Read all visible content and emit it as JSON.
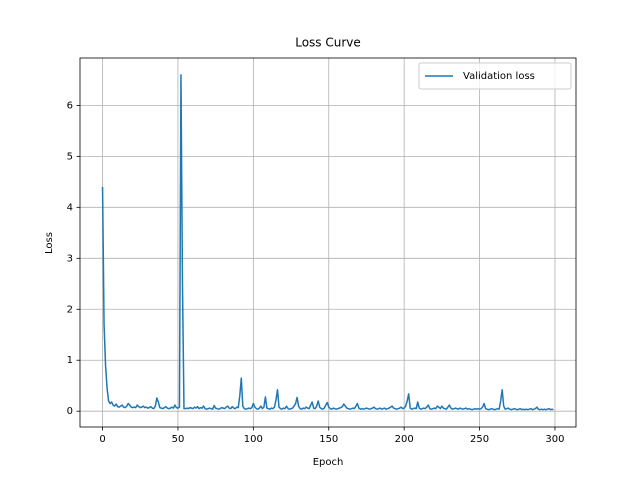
{
  "chart_data": {
    "type": "line",
    "title": "Loss Curve",
    "x_label": "Epoch",
    "y_label": "Loss",
    "x": [
      0,
      1,
      2,
      3,
      4,
      5,
      6,
      7,
      8,
      9,
      10,
      11,
      12,
      13,
      14,
      15,
      16,
      17,
      18,
      19,
      20,
      21,
      22,
      23,
      24,
      25,
      26,
      27,
      28,
      29,
      30,
      31,
      32,
      33,
      34,
      35,
      36,
      37,
      38,
      39,
      40,
      41,
      42,
      43,
      44,
      45,
      46,
      47,
      48,
      49,
      50,
      51,
      52,
      53,
      54,
      55,
      56,
      57,
      58,
      59,
      60,
      61,
      62,
      63,
      64,
      65,
      66,
      67,
      68,
      69,
      70,
      71,
      72,
      73,
      74,
      75,
      76,
      77,
      78,
      79,
      80,
      81,
      82,
      83,
      84,
      85,
      86,
      87,
      88,
      89,
      90,
      91,
      92,
      93,
      94,
      95,
      96,
      97,
      98,
      99,
      100,
      101,
      102,
      103,
      104,
      105,
      106,
      107,
      108,
      109,
      110,
      111,
      112,
      113,
      114,
      115,
      116,
      117,
      118,
      119,
      120,
      121,
      122,
      123,
      124,
      125,
      126,
      127,
      128,
      129,
      130,
      131,
      132,
      133,
      134,
      135,
      136,
      137,
      138,
      139,
      140,
      141,
      142,
      143,
      144,
      145,
      146,
      147,
      148,
      149,
      150,
      151,
      152,
      153,
      154,
      155,
      156,
      157,
      158,
      159,
      160,
      161,
      162,
      163,
      164,
      165,
      166,
      167,
      168,
      169,
      170,
      171,
      172,
      173,
      174,
      175,
      176,
      177,
      178,
      179,
      180,
      181,
      182,
      183,
      184,
      185,
      186,
      187,
      188,
      189,
      190,
      191,
      192,
      193,
      194,
      195,
      196,
      197,
      198,
      199,
      200,
      201,
      202,
      203,
      204,
      205,
      206,
      207,
      208,
      209,
      210,
      211,
      212,
      213,
      214,
      215,
      216,
      217,
      218,
      219,
      220,
      221,
      222,
      223,
      224,
      225,
      226,
      227,
      228,
      229,
      230,
      231,
      232,
      233,
      234,
      235,
      236,
      237,
      238,
      239,
      240,
      241,
      242,
      243,
      244,
      245,
      246,
      247,
      248,
      249,
      250,
      251,
      252,
      253,
      254,
      255,
      256,
      257,
      258,
      259,
      260,
      261,
      262,
      263,
      264,
      265,
      266,
      267,
      268,
      269,
      270,
      271,
      272,
      273,
      274,
      275,
      276,
      277,
      278,
      279,
      280,
      281,
      282,
      283,
      284,
      285,
      286,
      287,
      288,
      289,
      290,
      291,
      292,
      293,
      294,
      295,
      296,
      297,
      298,
      299
    ],
    "series": [
      {
        "name": "Validation loss",
        "color": "#1f77b4",
        "values": [
          4.4,
          1.7,
          0.9,
          0.45,
          0.2,
          0.15,
          0.18,
          0.12,
          0.1,
          0.14,
          0.09,
          0.08,
          0.1,
          0.12,
          0.08,
          0.07,
          0.1,
          0.15,
          0.12,
          0.08,
          0.07,
          0.08,
          0.07,
          0.12,
          0.09,
          0.07,
          0.08,
          0.1,
          0.07,
          0.08,
          0.06,
          0.07,
          0.09,
          0.06,
          0.05,
          0.1,
          0.26,
          0.18,
          0.07,
          0.06,
          0.05,
          0.07,
          0.09,
          0.06,
          0.05,
          0.06,
          0.08,
          0.06,
          0.12,
          0.07,
          0.06,
          0.08,
          6.6,
          2.5,
          0.05,
          0.05,
          0.06,
          0.05,
          0.07,
          0.06,
          0.05,
          0.08,
          0.06,
          0.09,
          0.05,
          0.07,
          0.06,
          0.1,
          0.05,
          0.04,
          0.05,
          0.06,
          0.05,
          0.04,
          0.11,
          0.06,
          0.05,
          0.04,
          0.05,
          0.07,
          0.06,
          0.05,
          0.08,
          0.1,
          0.06,
          0.05,
          0.09,
          0.06,
          0.05,
          0.08,
          0.07,
          0.3,
          0.65,
          0.1,
          0.05,
          0.04,
          0.05,
          0.06,
          0.05,
          0.07,
          0.15,
          0.08,
          0.05,
          0.04,
          0.06,
          0.1,
          0.05,
          0.08,
          0.28,
          0.06,
          0.05,
          0.04,
          0.06,
          0.05,
          0.08,
          0.22,
          0.42,
          0.08,
          0.05,
          0.04,
          0.06,
          0.05,
          0.1,
          0.05,
          0.04,
          0.05,
          0.06,
          0.1,
          0.15,
          0.27,
          0.1,
          0.05,
          0.04,
          0.06,
          0.05,
          0.08,
          0.06,
          0.05,
          0.12,
          0.18,
          0.06,
          0.05,
          0.1,
          0.2,
          0.08,
          0.05,
          0.04,
          0.06,
          0.12,
          0.17,
          0.08,
          0.05,
          0.04,
          0.06,
          0.05,
          0.04,
          0.05,
          0.06,
          0.07,
          0.09,
          0.14,
          0.1,
          0.06,
          0.05,
          0.04,
          0.05,
          0.06,
          0.05,
          0.1,
          0.15,
          0.06,
          0.04,
          0.05,
          0.04,
          0.05,
          0.06,
          0.05,
          0.04,
          0.05,
          0.06,
          0.08,
          0.05,
          0.04,
          0.05,
          0.06,
          0.04,
          0.05,
          0.06,
          0.04,
          0.05,
          0.06,
          0.08,
          0.1,
          0.06,
          0.05,
          0.04,
          0.05,
          0.06,
          0.08,
          0.05,
          0.06,
          0.1,
          0.2,
          0.34,
          0.06,
          0.04,
          0.05,
          0.06,
          0.05,
          0.18,
          0.06,
          0.04,
          0.05,
          0.06,
          0.05,
          0.08,
          0.12,
          0.05,
          0.04,
          0.05,
          0.06,
          0.05,
          0.1,
          0.08,
          0.05,
          0.1,
          0.06,
          0.05,
          0.04,
          0.08,
          0.12,
          0.06,
          0.04,
          0.05,
          0.06,
          0.05,
          0.04,
          0.06,
          0.05,
          0.04,
          0.05,
          0.06,
          0.04,
          0.05,
          0.04,
          0.03,
          0.04,
          0.05,
          0.04,
          0.05,
          0.04,
          0.05,
          0.08,
          0.15,
          0.05,
          0.04,
          0.03,
          0.04,
          0.05,
          0.04,
          0.03,
          0.04,
          0.05,
          0.04,
          0.2,
          0.42,
          0.1,
          0.04,
          0.05,
          0.06,
          0.04,
          0.03,
          0.04,
          0.05,
          0.04,
          0.03,
          0.04,
          0.05,
          0.03,
          0.04,
          0.03,
          0.04,
          0.03,
          0.04,
          0.05,
          0.03,
          0.04,
          0.05,
          0.08,
          0.04,
          0.03,
          0.04,
          0.03,
          0.04,
          0.03,
          0.04,
          0.05,
          0.03,
          0.04,
          0.03
        ]
      }
    ],
    "xlim": [
      -14.95,
      313.95
    ],
    "ylim": [
      -0.31,
      6.93
    ],
    "xticks": [
      0,
      50,
      100,
      150,
      200,
      250,
      300
    ],
    "yticks": [
      0,
      1,
      2,
      3,
      4,
      5,
      6
    ],
    "grid": true,
    "legend": "upper right"
  }
}
